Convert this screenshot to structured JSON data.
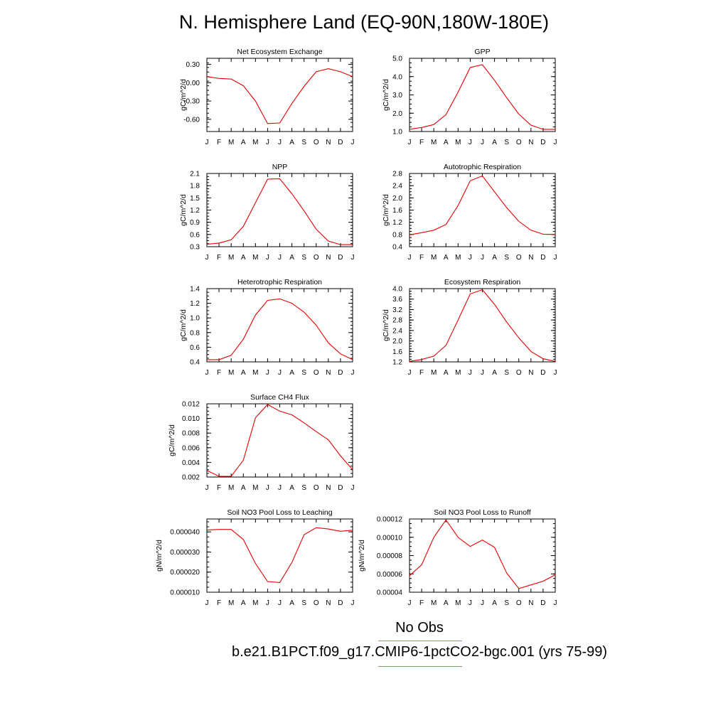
{
  "title": "N. Hemisphere Land (EQ-90N,180W-180E)",
  "months": [
    "J",
    "F",
    "M",
    "A",
    "M",
    "J",
    "J",
    "A",
    "S",
    "O",
    "N",
    "D",
    "J"
  ],
  "legend": {
    "obs_label": "No Obs",
    "run_label": "b.e21.B1PCT.f09_g17.CMIP6-1pctCO2-bgc.001 (yrs 75-99)",
    "obs_color": "#8888ee",
    "run_color": "#ee6666"
  },
  "colors": {
    "series": "#e60000",
    "axis": "#000000"
  },
  "chart_data": [
    {
      "type": "line",
      "title": "Net Ecosystem Exchange",
      "ylabel": "gC/m^2/d",
      "ylim": [
        -0.8,
        0.4
      ],
      "yticks": [
        -0.6,
        -0.3,
        0.0,
        0.3
      ],
      "ytick_labels": [
        "-0.60",
        "-0.30",
        "0.00",
        "0.30"
      ],
      "values": [
        0.1,
        0.07,
        0.06,
        -0.05,
        -0.3,
        -0.67,
        -0.66,
        -0.34,
        -0.06,
        0.18,
        0.23,
        0.18,
        0.1
      ]
    },
    {
      "type": "line",
      "title": "GPP",
      "ylabel": "gC/m^2/d",
      "ylim": [
        1.0,
        5.0
      ],
      "yticks": [
        1.0,
        2.0,
        3.0,
        4.0,
        5.0
      ],
      "ytick_labels": [
        "1.0",
        "2.0",
        "3.0",
        "4.0",
        "5.0"
      ],
      "values": [
        1.12,
        1.22,
        1.38,
        1.92,
        3.15,
        4.5,
        4.65,
        3.8,
        2.85,
        1.95,
        1.35,
        1.12,
        1.12
      ]
    },
    {
      "type": "line",
      "title": "NPP",
      "ylabel": "gC/m^2/d",
      "ylim": [
        0.3,
        2.1
      ],
      "yticks": [
        0.3,
        0.6,
        0.9,
        1.2,
        1.5,
        1.8,
        2.1
      ],
      "ytick_labels": [
        "0.3",
        "0.6",
        "0.9",
        "1.2",
        "1.5",
        "1.8",
        "2.1"
      ],
      "values": [
        0.36,
        0.39,
        0.47,
        0.8,
        1.38,
        1.96,
        1.97,
        1.6,
        1.18,
        0.73,
        0.44,
        0.35,
        0.35
      ]
    },
    {
      "type": "line",
      "title": "Autotrophic Respiration",
      "ylabel": "gC/m^2/d",
      "ylim": [
        0.4,
        2.8
      ],
      "yticks": [
        0.4,
        0.8,
        1.2,
        1.6,
        2.0,
        2.4,
        2.8
      ],
      "ytick_labels": [
        "0.4",
        "0.8",
        "1.2",
        "1.6",
        "2.0",
        "2.4",
        "2.8"
      ],
      "values": [
        0.79,
        0.86,
        0.94,
        1.13,
        1.75,
        2.56,
        2.72,
        2.2,
        1.68,
        1.23,
        0.94,
        0.81,
        0.8
      ]
    },
    {
      "type": "line",
      "title": "Heterotrophic Respiration",
      "ylabel": "gC/m^2/d",
      "ylim": [
        0.4,
        1.4
      ],
      "yticks": [
        0.4,
        0.6,
        0.8,
        1.0,
        1.2,
        1.4
      ],
      "ytick_labels": [
        "0.4",
        "0.6",
        "0.8",
        "1.0",
        "1.2",
        "1.4"
      ],
      "values": [
        0.43,
        0.43,
        0.49,
        0.71,
        1.04,
        1.24,
        1.26,
        1.2,
        1.08,
        0.9,
        0.66,
        0.51,
        0.43
      ]
    },
    {
      "type": "line",
      "title": "Ecosystem Respiration",
      "ylabel": "gC/m^2/d",
      "ylim": [
        1.2,
        4.0
      ],
      "yticks": [
        1.2,
        1.6,
        2.0,
        2.4,
        2.8,
        3.2,
        3.6,
        4.0
      ],
      "ytick_labels": [
        "1.2",
        "1.6",
        "2.0",
        "2.4",
        "2.8",
        "3.2",
        "3.6",
        "4.0"
      ],
      "values": [
        1.22,
        1.29,
        1.42,
        1.83,
        2.8,
        3.8,
        3.96,
        3.4,
        2.72,
        2.12,
        1.6,
        1.32,
        1.22
      ]
    },
    {
      "type": "line",
      "title": "Surface CH4 Flux",
      "ylabel": "gC/m^2/d",
      "ylim": [
        0.002,
        0.012
      ],
      "yticks": [
        0.002,
        0.004,
        0.006,
        0.008,
        0.01,
        0.012
      ],
      "ytick_labels": [
        "0.002",
        "0.004",
        "0.006",
        "0.008",
        "0.010",
        "0.012"
      ],
      "values": [
        0.0029,
        0.0021,
        0.0021,
        0.0043,
        0.0101,
        0.0119,
        0.011,
        0.0105,
        0.0094,
        0.0082,
        0.0071,
        0.0049,
        0.003
      ]
    },
    {
      "type": "line",
      "title": "Soil NO3 Pool Loss to Leaching",
      "ylabel": "gN/m^2/d",
      "ylim": [
        1e-05,
        4.64e-05
      ],
      "yticks": [
        1e-05,
        2e-05,
        3e-05,
        4e-05
      ],
      "ytick_labels": [
        "0.000010",
        "0.000020",
        "0.000030",
        "0.000040"
      ],
      "values": [
        4.09e-05,
        4.12e-05,
        4.12e-05,
        3.62e-05,
        2.43e-05,
        1.53e-05,
        1.48e-05,
        2.48e-05,
        3.86e-05,
        4.21e-05,
        4.14e-05,
        4.03e-05,
        4.08e-05
      ]
    },
    {
      "type": "line",
      "title": "Soil NO3 Pool Loss to Runoff",
      "ylabel": "gN/m^2/d",
      "ylim": [
        4e-05,
        0.00012
      ],
      "yticks": [
        4e-05,
        6e-05,
        8e-05,
        0.0001,
        0.00012
      ],
      "ytick_labels": [
        "0.00004",
        "0.00006",
        "0.00008",
        "0.00010",
        "0.00012"
      ],
      "values": [
        5.8e-05,
        7e-05,
        0.0001,
        0.000119,
        0.0001,
        9e-05,
        9.7e-05,
        8.9e-05,
        6.1e-05,
        4.4e-05,
        4.8e-05,
        5.2e-05,
        5.9e-05
      ]
    }
  ]
}
